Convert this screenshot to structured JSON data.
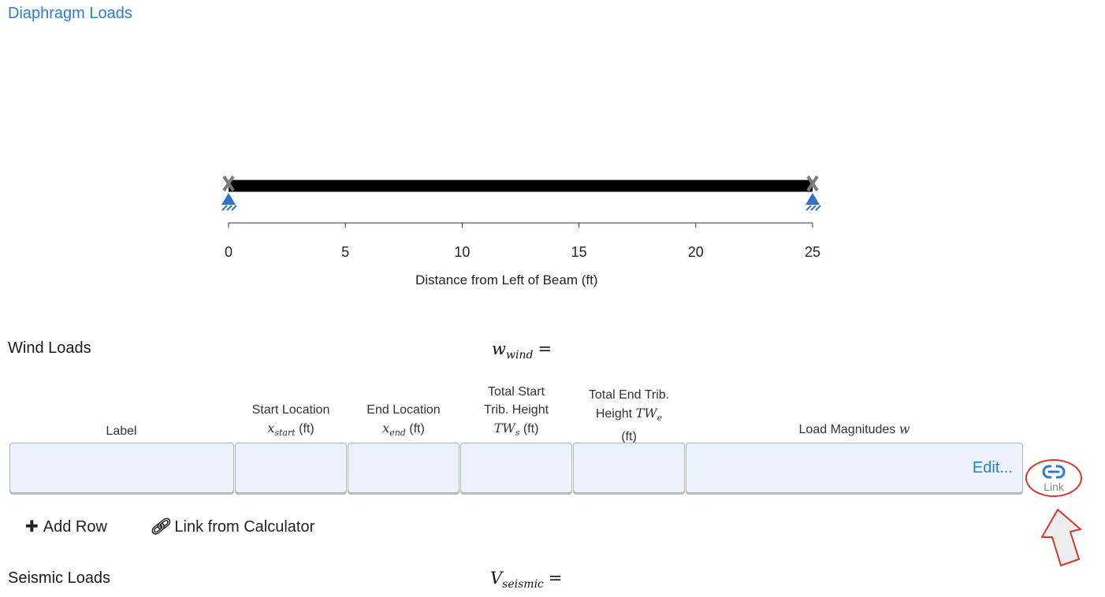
{
  "header": {
    "title": "Diaphragm Loads"
  },
  "chart_data": {
    "type": "beam",
    "span": [
      0,
      25
    ],
    "supports": [
      0,
      25
    ],
    "ticks": [
      "0",
      "5",
      "10",
      "15",
      "20",
      "25"
    ],
    "xlabel": "Distance from Left of Beam (ft)"
  },
  "wind": {
    "title": "Wind Loads",
    "formula_var": "w",
    "formula_sub": "wind",
    "formula_eq": "=",
    "columns": {
      "label": "Label",
      "start_line1": "Start Location",
      "start_var": "x",
      "start_sub": "start",
      "start_unit": "(ft)",
      "end_line1": "End Location",
      "end_var": "x",
      "end_sub": "end",
      "end_unit": "(ft)",
      "tws_line1": "Total Start",
      "tws_line2": "Trib. Height",
      "tws_var": "TW",
      "tws_sub": "s",
      "tws_unit": "(ft)",
      "twe_line1": "Total End Trib.",
      "twe_line2": "Height",
      "twe_var": "TW",
      "twe_sub": "e",
      "twe_unit": "(ft)",
      "mag_label": "Load Magnitudes",
      "mag_var": "w"
    },
    "edit_label": "Edit...",
    "link_label": "Link",
    "add_row": "Add Row",
    "link_calc": "Link from Calculator"
  },
  "seismic": {
    "title": "Seismic Loads",
    "formula_var": "V",
    "formula_sub": "seismic",
    "formula_eq": "="
  },
  "colors": {
    "accent": "#2b7bd6",
    "annotation": "#d9352b",
    "cell_bg": "#e9f2fd"
  }
}
